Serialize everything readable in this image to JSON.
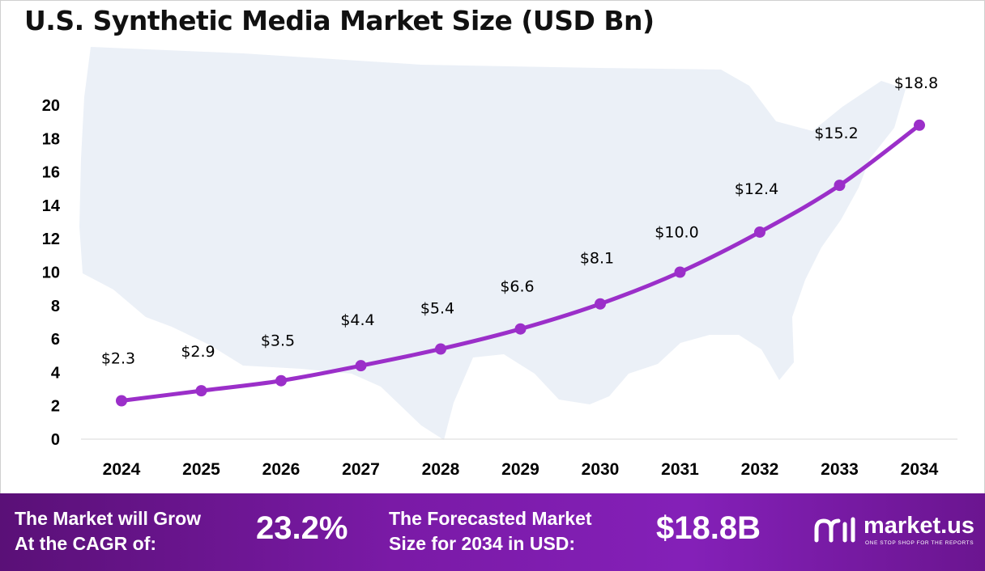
{
  "chart_data": {
    "type": "line",
    "title": "U.S. Synthetic Media Market Size (USD Bn)",
    "xlabel": "",
    "ylabel": "",
    "categories": [
      "2024",
      "2025",
      "2026",
      "2027",
      "2028",
      "2029",
      "2030",
      "2031",
      "2032",
      "2033",
      "2034"
    ],
    "values": [
      2.3,
      2.9,
      3.5,
      4.4,
      5.4,
      6.6,
      8.1,
      10.0,
      12.4,
      15.2,
      18.8
    ],
    "data_labels": [
      "$2.3",
      "$2.9",
      "$3.5",
      "$4.4",
      "$5.4",
      "$6.6",
      "$8.1",
      "$10.0",
      "$12.4",
      "$15.2",
      "$18.8"
    ],
    "y_ticks": [
      "0",
      "2",
      "4",
      "6",
      "8",
      "10",
      "12",
      "14",
      "16",
      "18",
      "20"
    ],
    "ylim": [
      0,
      20
    ],
    "grid": false,
    "legend": "none",
    "line_color": "#9b2fc9"
  },
  "footer": {
    "cagr_label_line1": "The Market will Grow",
    "cagr_label_line2": "At the CAGR of:",
    "cagr_value": "23.2%",
    "forecast_label_line1": "The Forecasted Market",
    "forecast_label_line2": "Size for 2034 in USD:",
    "forecast_value": "$18.8B",
    "brand_name": "market.us",
    "brand_tagline": "ONE STOP SHOP FOR THE REPORTS",
    "background_color": "#7a1aa6"
  },
  "icons": {
    "brand_logo": "market-us-logo-icon",
    "background": "usa-map-silhouette"
  }
}
